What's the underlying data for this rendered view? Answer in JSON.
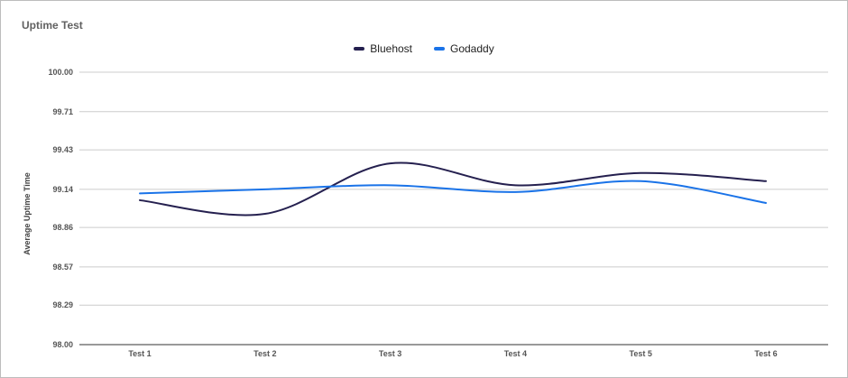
{
  "chart_data": {
    "type": "line",
    "title": "Uptime Test",
    "xlabel": "",
    "ylabel": "Average Uptime Time",
    "categories": [
      "Test 1",
      "Test 2",
      "Test 3",
      "Test 4",
      "Test 5",
      "Test 6"
    ],
    "series": [
      {
        "name": "Bluehost",
        "color": "#25204f",
        "values": [
          99.06,
          98.96,
          99.33,
          99.17,
          99.26,
          99.2
        ]
      },
      {
        "name": "Godaddy",
        "color": "#1a73e8",
        "values": [
          99.11,
          99.14,
          99.17,
          99.12,
          99.2,
          99.04
        ]
      }
    ],
    "ylim": [
      98.0,
      100.0
    ],
    "yticks": [
      "98.00",
      "98.29",
      "98.57",
      "98.86",
      "99.14",
      "99.43",
      "99.71",
      "100.00"
    ],
    "grid": true,
    "legend_position": "top"
  }
}
